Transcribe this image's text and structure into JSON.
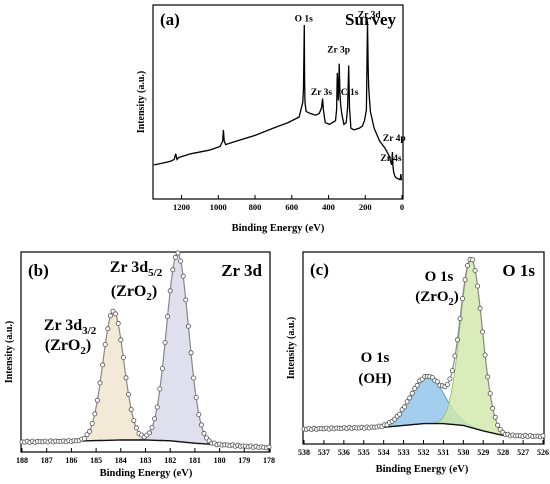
{
  "chart_data": [
    {
      "panel": "(a)",
      "type": "line",
      "title": "Survey",
      "xlabel": "Binding Energy (eV)",
      "ylabel": "Intensity (a.u.)",
      "xlim": [
        1350,
        0
      ],
      "x_reversed": true,
      "ylim": [
        0,
        100
      ],
      "x_ticks": [
        1200,
        1000,
        800,
        600,
        400,
        200,
        0
      ],
      "y_ticks_shown": false,
      "series": [
        {
          "color": "#000000",
          "x": [
            1350,
            1300,
            1260,
            1240,
            1232,
            1225,
            1215,
            1150,
            1050,
            990,
            976,
            972,
            968,
            960,
            900,
            800,
            700,
            620,
            560,
            540,
            536,
            532,
            530,
            528,
            522,
            500,
            470,
            450,
            438,
            432,
            428,
            418,
            395,
            362,
            356,
            352,
            346,
            342,
            338,
            334,
            328,
            316,
            304,
            296,
            290,
            286,
            278,
            262,
            232,
            216,
            204,
            194,
            188,
            184,
            181,
            178,
            172,
            152,
            122,
            92,
            70,
            62,
            56,
            52,
            49,
            45,
            40,
            32,
            12,
            8,
            6,
            4,
            0
          ],
          "y": [
            18,
            19,
            20,
            21,
            24,
            21,
            22,
            24,
            26,
            28,
            31,
            37,
            31,
            29,
            31,
            34,
            38,
            41,
            44,
            52,
            60,
            94,
            64,
            52,
            47,
            46,
            45,
            46,
            49,
            54,
            48,
            41,
            40,
            42,
            48,
            68,
            53,
            73,
            58,
            51,
            46,
            40,
            41,
            49,
            72,
            49,
            38,
            37,
            38,
            39,
            42,
            48,
            96,
            70,
            60,
            55,
            47,
            38,
            31,
            27,
            23,
            20,
            18,
            25,
            17,
            14,
            12,
            11,
            10,
            11,
            13,
            10,
            10
          ]
        }
      ],
      "annotations": [
        {
          "text": "O 1s",
          "x": 535,
          "y": 96
        },
        {
          "text": "Zr 3d",
          "x": 178,
          "y": 98
        },
        {
          "text": "Zr 3p",
          "x": 345,
          "y": 79
        },
        {
          "text": "Zr 3s",
          "x": 438,
          "y": 56
        },
        {
          "text": "C 1s",
          "x": 285,
          "y": 56
        },
        {
          "text": "Zr 4p",
          "x": 42,
          "y": 31
        },
        {
          "text": "Zr 4s",
          "x": 60,
          "y": 20
        }
      ]
    },
    {
      "panel": "(b)",
      "type": "line",
      "title": "Zr 3d",
      "xlabel": "Binding Energy (eV)",
      "ylabel": "Intensity (a.u.)",
      "xlim": [
        188,
        178
      ],
      "x_reversed": true,
      "ylim": [
        0,
        100
      ],
      "x_ticks": [
        188,
        187,
        186,
        185,
        184,
        183,
        182,
        181,
        180,
        179,
        178
      ],
      "y_ticks_shown": false,
      "peaks": [
        {
          "label_main": "Zr 3d",
          "label_sub": "3/2",
          "label_phase": "(ZrO",
          "label_phase_sub": "2",
          "label_phase_end": ")",
          "center": 184.3,
          "height": 68,
          "fwhm": 1.0,
          "fill": "#efe3cc",
          "stroke": "#cdb78e"
        },
        {
          "label_main": "Zr 3d",
          "label_sub": "5/2",
          "label_phase": "(ZrO",
          "label_phase_sub": "2",
          "label_phase_end": ")",
          "center": 181.7,
          "height": 99,
          "fwhm": 1.05,
          "fill": "#d7d7e8",
          "stroke": "#9d9dbf"
        }
      ],
      "background": {
        "x": [
          188,
          186,
          184,
          183,
          182,
          181,
          178
        ],
        "y": [
          3.2,
          3.6,
          4.2,
          4.2,
          3.8,
          2.5,
          0.2
        ]
      },
      "envelope_color": "#8a8a8a",
      "markers": "open-circle"
    },
    {
      "panel": "(c)",
      "type": "line",
      "title": "O 1s",
      "xlabel": "Binding Energy (eV)",
      "ylabel": "Intensity (a.u.)",
      "xlim": [
        538,
        526
      ],
      "x_reversed": true,
      "ylim": [
        0,
        100
      ],
      "x_ticks": [
        538,
        537,
        536,
        535,
        534,
        533,
        532,
        531,
        530,
        529,
        528,
        527,
        526
      ],
      "y_ticks_shown": false,
      "peaks": [
        {
          "label_main": "O 1s",
          "label_phase": "(OH)",
          "center": 531.8,
          "height": 26,
          "fwhm": 2.0,
          "fill": "#8cc2ea",
          "stroke": "#4a90c8"
        },
        {
          "label_main": "O 1s",
          "label_phase": "(ZrO",
          "label_phase_sub": "2",
          "label_phase_end": ")",
          "center": 529.6,
          "height": 92,
          "fwhm": 1.3,
          "fill": "#cfe7a7",
          "stroke": "#8fbf5e"
        }
      ],
      "background": {
        "x": [
          538,
          534,
          532,
          531,
          530,
          529,
          528,
          526
        ],
        "y": [
          6,
          7,
          9,
          9,
          8,
          5,
          2.5,
          2
        ]
      },
      "envelope_color": "#8a8a8a",
      "markers": "open-circle"
    }
  ]
}
